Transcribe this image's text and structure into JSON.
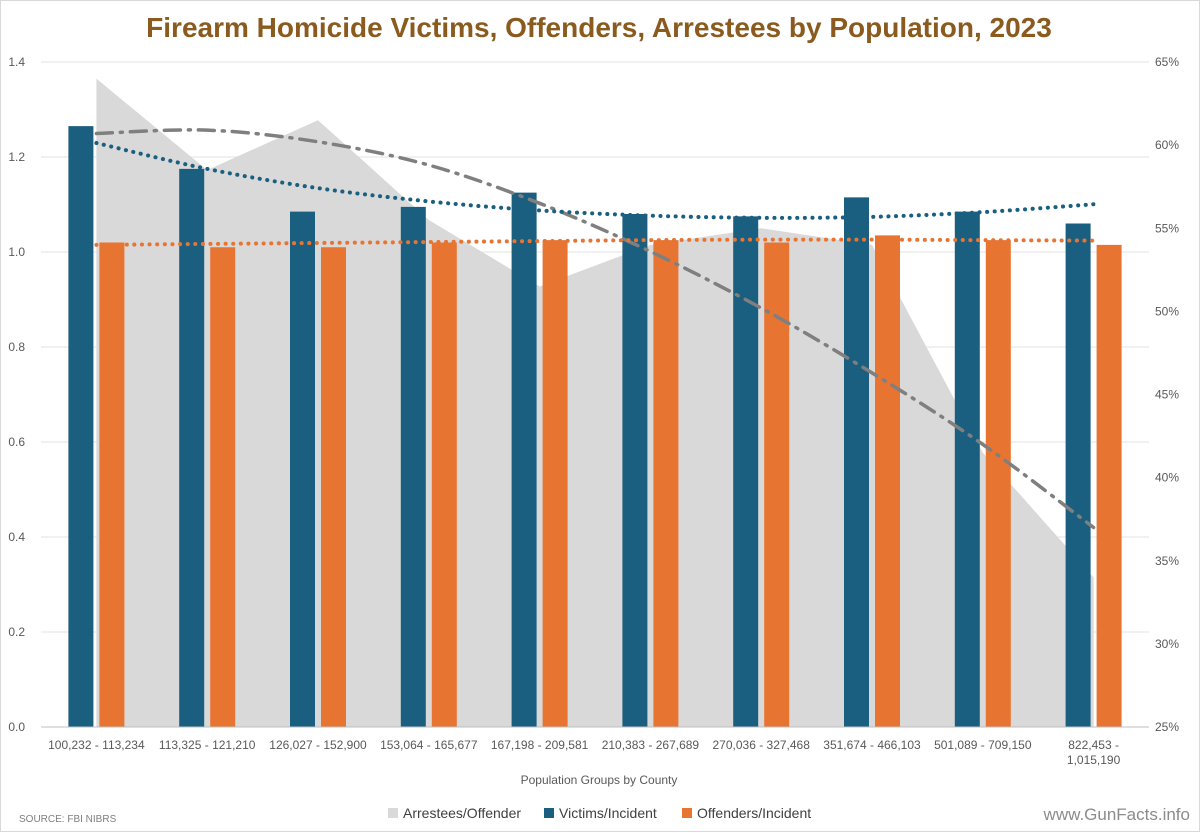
{
  "chart_data": {
    "type": "bar",
    "title": "Firearm Homicide Victims, Offenders, Arrestees by  Population, 2023",
    "xlabel": "Population Groups by County",
    "ylabel": "",
    "ylim": [
      0,
      1.4
    ],
    "y_ticks": [
      "0.0",
      "0.2",
      "0.4",
      "0.6",
      "0.8",
      "1.0",
      "1.2",
      "1.4"
    ],
    "y2lim": [
      25,
      65
    ],
    "y2_ticks": [
      "25%",
      "30%",
      "35%",
      "40%",
      "45%",
      "50%",
      "55%",
      "60%",
      "65%"
    ],
    "categories": [
      [
        "100,232 - 113,234"
      ],
      [
        "113,325 - 121,210"
      ],
      [
        "126,027 - 152,900"
      ],
      [
        "153,064 - 165,677"
      ],
      [
        "167,198 - 209,581"
      ],
      [
        "210,383 - 267,689"
      ],
      [
        "270,036 - 327,468"
      ],
      [
        "351,674 - 466,103"
      ],
      [
        "501,089 - 709,150"
      ],
      [
        "822,453 -",
        "1,015,190"
      ]
    ],
    "series": [
      {
        "name": "Arrestees/Offender",
        "type": "area",
        "axis": "secondary",
        "color": "#d9d9d9",
        "values": [
          64,
          58.5,
          61.5,
          55.5,
          51.5,
          54,
          55,
          54,
          41.5,
          34
        ]
      },
      {
        "name": "Victims/Incident",
        "type": "bar",
        "axis": "primary",
        "color": "#1a5e80",
        "values": [
          1.265,
          1.175,
          1.085,
          1.095,
          1.125,
          1.08,
          1.075,
          1.115,
          1.085,
          1.06
        ]
      },
      {
        "name": "Offenders/Incident",
        "type": "bar",
        "axis": "primary",
        "color": "#e87432",
        "values": [
          1.02,
          1.01,
          1.01,
          1.02,
          1.025,
          1.025,
          1.02,
          1.035,
          1.025,
          1.015
        ]
      }
    ],
    "trendlines": [
      {
        "of": "Arrestees/Offender",
        "style": "dash-dot",
        "color": "#7f7f7f",
        "axis": "secondary",
        "values": [
          60.7,
          60.9,
          60.2,
          58.8,
          56.5,
          53.6,
          50.2,
          46.3,
          42.0,
          37.0
        ]
      },
      {
        "of": "Victims/Incident",
        "style": "dotted",
        "color": "#1a5e80",
        "axis": "primary",
        "values": [
          1.2295,
          1.175,
          1.1345,
          1.1065,
          1.0875,
          1.0765,
          1.072,
          1.074,
          1.084,
          1.1005
        ]
      },
      {
        "of": "Offenders/Incident",
        "style": "dotted",
        "color": "#e87432",
        "axis": "primary",
        "values": [
          1.015,
          1.017,
          1.019,
          1.021,
          1.023,
          1.025,
          1.026,
          1.026,
          1.025,
          1.024
        ]
      }
    ],
    "legend": [
      "Arrestees/Offender",
      "Victims/Incident",
      "Offenders/Incident"
    ],
    "legend_position": "bottom",
    "grid": true
  },
  "footer": {
    "source": "SOURCE: FBI NIBRS",
    "watermark": "www.GunFacts.info"
  }
}
